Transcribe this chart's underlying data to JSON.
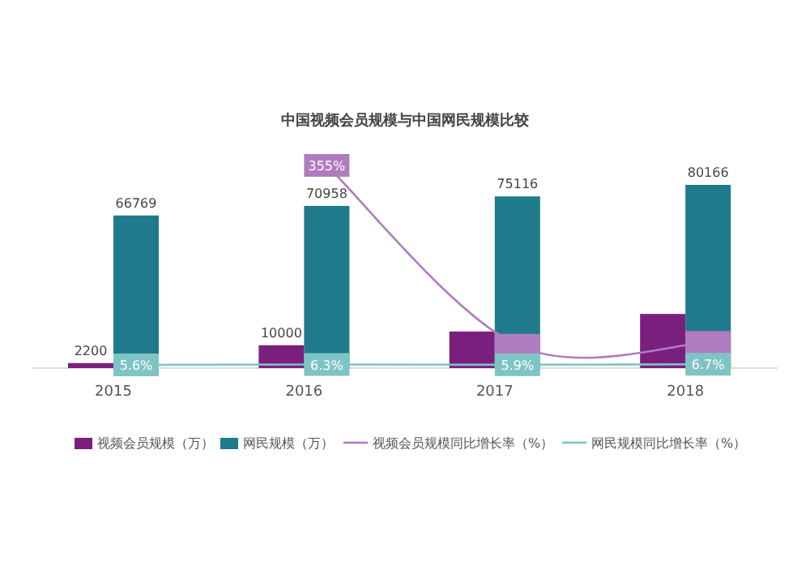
{
  "chart_data": {
    "type": "bar",
    "title": "中国视频会员规模与中国网民规模比较",
    "categories": [
      "2015",
      "2016",
      "2017",
      "2018"
    ],
    "legend": "bottom",
    "series": [
      {
        "name": "视频会员规模（万）",
        "color": "#7b1f7e",
        "values": [
          2200,
          10000,
          16000,
          23700
        ],
        "value_labels": [
          "2200",
          "10000",
          null,
          null
        ]
      },
      {
        "name": "网民规模（万）",
        "color": "#1f7a8c",
        "values": [
          66769,
          70958,
          75116,
          80166
        ],
        "value_labels": [
          "66769",
          "70958",
          "75116",
          "80166"
        ]
      },
      {
        "name": "视频会员规模同比增长率（%）",
        "type": "line",
        "axis": "y2",
        "marker": "square",
        "color": "#b07cc0",
        "values": [
          null,
          355,
          40,
          45
        ],
        "value_labels": [
          null,
          "355%",
          null,
          null
        ]
      },
      {
        "name": "网民规模同比增长率（%）",
        "type": "line",
        "axis": "y2",
        "marker": "square",
        "color": "#7fc4c4",
        "values": [
          5.6,
          6.3,
          5.9,
          6.7
        ],
        "value_labels": [
          "5.6%",
          "6.3%",
          "5.9%",
          "6.7%"
        ]
      }
    ]
  }
}
